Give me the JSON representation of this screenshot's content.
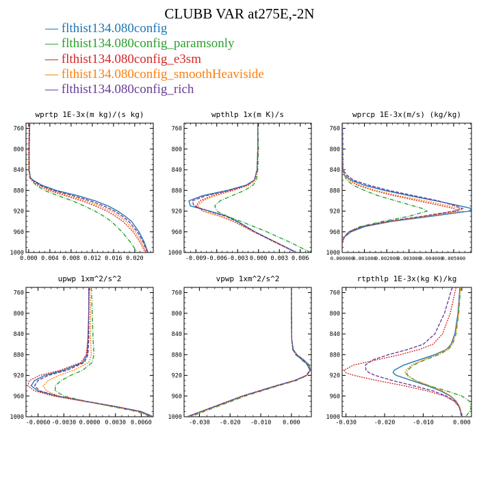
{
  "title": "CLUBB VAR at275E,-2N",
  "legend": [
    {
      "name": "flthist134.080config",
      "color": "#1f77b4",
      "dash": "solid"
    },
    {
      "name": "flthist134.080config_paramsonly",
      "color": "#2ca02c",
      "dash": "dashdot"
    },
    {
      "name": "flthist134.080config_e3sm",
      "color": "#d62728",
      "dash": "dotted"
    },
    {
      "name": "flthist134.080config_smoothHeaviside",
      "color": "#ff7f0e",
      "dash": "dotted"
    },
    {
      "name": "flthist134.080config_rich",
      "color": "#6a3d9a",
      "dash": "dashed"
    }
  ],
  "chart_data": [
    {
      "type": "line",
      "title": "wprtp  1E-3x(m kg)/(s kg)",
      "xlim": [
        -0.0005,
        0.0235
      ],
      "ylim": [
        1000,
        750
      ],
      "xticks": [
        "0.000",
        "0.004",
        "0.008",
        "0.012",
        "0.016",
        "0.020"
      ],
      "xtick_values": [
        0,
        0.004,
        0.008,
        0.012,
        0.016,
        0.02
      ],
      "yticks": [
        760,
        800,
        840,
        880,
        920,
        960,
        1000
      ],
      "y": [
        750,
        800,
        840,
        855,
        860,
        870,
        880,
        890,
        900,
        910,
        920,
        930,
        940,
        960,
        980,
        1000
      ],
      "series": [
        {
          "values": [
            0.0002,
            0.0001,
            0.0001,
            0.0003,
            0.0008,
            0.0025,
            0.0052,
            0.0092,
            0.0125,
            0.015,
            0.0168,
            0.0182,
            0.0194,
            0.0208,
            0.0218,
            0.0225
          ]
        },
        {
          "values": [
            0.0002,
            0.0001,
            0.0,
            0.0002,
            0.0005,
            0.0014,
            0.003,
            0.0055,
            0.0082,
            0.0105,
            0.0125,
            0.0142,
            0.0156,
            0.0176,
            0.0192,
            0.0205
          ]
        },
        {
          "values": [
            0.0001,
            0.0,
            0.0,
            0.0002,
            0.0006,
            0.0018,
            0.0038,
            0.0068,
            0.01,
            0.0126,
            0.0148,
            0.0164,
            0.0178,
            0.0197,
            0.021,
            0.022
          ]
        },
        {
          "values": [
            0.0002,
            0.0001,
            0.0,
            0.0002,
            0.0006,
            0.002,
            0.0042,
            0.0075,
            0.0108,
            0.0134,
            0.0156,
            0.0171,
            0.0184,
            0.0201,
            0.0213,
            0.0222
          ]
        },
        {
          "values": [
            0.0002,
            0.0001,
            0.0001,
            0.0003,
            0.0007,
            0.0022,
            0.0047,
            0.0083,
            0.0116,
            0.0142,
            0.0162,
            0.0177,
            0.0189,
            0.0205,
            0.0216,
            0.0224
          ]
        }
      ]
    },
    {
      "type": "line",
      "title": "wpthlp  1x(m K)/s",
      "xlim": [
        -0.0107,
        0.0076
      ],
      "ylim": [
        1000,
        750
      ],
      "xticks": [
        "-0.009",
        "-0.006",
        "-0.003",
        "0.000",
        "0.003",
        "0.006"
      ],
      "xtick_values": [
        -0.009,
        -0.006,
        -0.003,
        0,
        0.003,
        0.006
      ],
      "yticks": [
        760,
        800,
        840,
        880,
        920,
        960,
        1000
      ],
      "y": [
        750,
        800,
        840,
        860,
        870,
        880,
        890,
        900,
        910,
        920,
        930,
        940,
        960,
        980,
        1000
      ],
      "series": [
        {
          "values": [
            -0.0001,
            -0.0001,
            -0.0002,
            -0.0006,
            -0.0018,
            -0.0045,
            -0.008,
            -0.01,
            -0.0098,
            -0.007,
            -0.0045,
            -0.003,
            -0.0005,
            0.0025,
            0.0055
          ]
        },
        {
          "values": [
            -0.0001,
            0.0,
            -0.0001,
            -0.0003,
            -0.0008,
            -0.002,
            -0.0038,
            -0.0055,
            -0.0063,
            -0.006,
            -0.0045,
            -0.0025,
            0.0012,
            0.0045,
            0.0075
          ]
        },
        {
          "values": [
            -0.0001,
            -0.0001,
            -0.0002,
            -0.0005,
            -0.0015,
            -0.0038,
            -0.0066,
            -0.0084,
            -0.009,
            -0.008,
            -0.0055,
            -0.0036,
            -0.0007,
            0.0023,
            0.0054
          ]
        },
        {
          "values": [
            -0.0001,
            -0.0001,
            -0.0002,
            -0.0005,
            -0.0014,
            -0.0035,
            -0.0062,
            -0.008,
            -0.0088,
            -0.0079,
            -0.0054,
            -0.0035,
            -0.0006,
            0.0024,
            0.0055
          ]
        },
        {
          "values": [
            -0.0001,
            -0.0001,
            -0.0002,
            -0.0006,
            -0.0017,
            -0.0042,
            -0.0075,
            -0.0095,
            -0.0093,
            -0.0072,
            -0.0047,
            -0.0031,
            -0.0006,
            0.0024,
            0.0054
          ]
        }
      ]
    },
    {
      "type": "line",
      "title": "wprcp  1E-3x(m/s) (kg/kg)",
      "xlim": [
        0,
        0.0058
      ],
      "ylim": [
        1000,
        750
      ],
      "xticks": [
        "0.000000",
        "0.001000",
        "0.002000",
        "0.003000",
        "0.004000",
        "0.005000"
      ],
      "xtick_values": [
        0,
        0.001,
        0.002,
        0.003,
        0.004,
        0.005
      ],
      "yticks": [
        760,
        800,
        840,
        880,
        920,
        960,
        1000
      ],
      "y": [
        750,
        840,
        850,
        860,
        870,
        880,
        890,
        900,
        910,
        915,
        920,
        930,
        940,
        950,
        960,
        970,
        980,
        1000
      ],
      "series": [
        {
          "values": [
            1e-05,
            3e-05,
            0.0001,
            0.0004,
            0.001,
            0.0019,
            0.003,
            0.0042,
            0.0053,
            0.0058,
            0.0057,
            0.004,
            0.0022,
            0.001,
            0.0004,
            0.0001,
            0.0,
            0.0
          ]
        },
        {
          "values": [
            1e-05,
            2e-05,
            0.0001,
            0.0002,
            0.0005,
            0.001,
            0.0016,
            0.0024,
            0.0032,
            0.0036,
            0.0038,
            0.003,
            0.0018,
            0.0008,
            0.0003,
            0.0001,
            0.0,
            0.0
          ]
        },
        {
          "values": [
            1e-05,
            2e-05,
            0.0001,
            0.0003,
            0.0007,
            0.0014,
            0.0023,
            0.0034,
            0.0045,
            0.005,
            0.0052,
            0.0037,
            0.0021,
            0.0009,
            0.0003,
            0.0001,
            0.0,
            0.0
          ]
        },
        {
          "values": [
            1e-05,
            2e-05,
            0.0001,
            0.0003,
            0.0008,
            0.0015,
            0.0025,
            0.0037,
            0.0048,
            0.0053,
            0.0054,
            0.0038,
            0.0021,
            0.0009,
            0.0003,
            0.0001,
            0.0,
            0.0
          ]
        },
        {
          "values": [
            1e-05,
            3e-05,
            0.0002,
            0.0005,
            0.0012,
            0.0021,
            0.0032,
            0.0043,
            0.0051,
            0.0054,
            0.005,
            0.0036,
            0.002,
            0.0009,
            0.0003,
            0.0001,
            0.0,
            0.0
          ]
        }
      ]
    },
    {
      "type": "line",
      "title": "upwp  1xm^2/s^2",
      "xlim": [
        -0.0074,
        0.0074
      ],
      "ylim": [
        1000,
        750
      ],
      "xticks": [
        "-0.0060",
        "-0.0030",
        "0.0000",
        "0.0030",
        "0.0060"
      ],
      "xtick_values": [
        -0.006,
        -0.003,
        0,
        0.003,
        0.006
      ],
      "yticks": [
        760,
        800,
        840,
        880,
        920,
        960,
        1000
      ],
      "y": [
        750,
        800,
        850,
        880,
        895,
        910,
        920,
        930,
        940,
        950,
        960,
        970,
        980,
        990,
        1000
      ],
      "series": [
        {
          "values": [
            -0.0001,
            -0.0001,
            -0.0002,
            -0.0003,
            -0.0008,
            -0.003,
            -0.0052,
            -0.0064,
            -0.0068,
            -0.006,
            -0.0038,
            -0.0005,
            0.003,
            0.006,
            0.0074
          ]
        },
        {
          "values": [
            0.0002,
            0.0003,
            0.0004,
            0.0005,
            0.0003,
            -0.0008,
            -0.0022,
            -0.0033,
            -0.004,
            -0.004,
            -0.003,
            -0.0005,
            0.0025,
            0.0055,
            0.0072
          ]
        },
        {
          "values": [
            -0.0001,
            -0.0001,
            -0.0002,
            -0.0004,
            -0.001,
            -0.0034,
            -0.0058,
            -0.007,
            -0.0072,
            -0.0064,
            -0.0042,
            -0.0008,
            0.0028,
            0.0058,
            0.0073
          ]
        },
        {
          "values": [
            0.0,
            0.0001,
            0.0001,
            0.0002,
            -0.0001,
            -0.0018,
            -0.0036,
            -0.0048,
            -0.0054,
            -0.005,
            -0.0036,
            -0.0006,
            0.0027,
            0.0057,
            0.0073
          ]
        },
        {
          "values": [
            -0.0001,
            -0.0001,
            -0.0001,
            -0.0002,
            -0.0006,
            -0.0026,
            -0.0048,
            -0.006,
            -0.0064,
            -0.0058,
            -0.0037,
            -0.0005,
            0.0029,
            0.0059,
            0.0074
          ]
        }
      ]
    },
    {
      "type": "line",
      "title": "vpwp  1xm^2/s^2",
      "xlim": [
        -0.035,
        0.0065
      ],
      "ylim": [
        1000,
        750
      ],
      "xticks": [
        "-0.030",
        "-0.020",
        "-0.010",
        "0.000"
      ],
      "xtick_values": [
        -0.03,
        -0.02,
        -0.01,
        0
      ],
      "yticks": [
        760,
        800,
        840,
        880,
        920,
        960,
        1000
      ],
      "y": [
        750,
        800,
        850,
        870,
        880,
        890,
        900,
        910,
        920,
        930,
        940,
        960,
        980,
        1000
      ],
      "series": [
        {
          "values": [
            0.0,
            0.0,
            0.0001,
            0.0006,
            0.0018,
            0.004,
            0.0058,
            0.0062,
            0.005,
            0.001,
            -0.005,
            -0.016,
            -0.025,
            -0.034
          ]
        },
        {
          "values": [
            0.0,
            0.0,
            0.0001,
            0.0004,
            0.0014,
            0.0034,
            0.0052,
            0.006,
            0.0052,
            0.0016,
            -0.0042,
            -0.015,
            -0.024,
            -0.033
          ]
        },
        {
          "values": [
            0.0,
            0.0,
            0.0001,
            0.0005,
            0.0015,
            0.0036,
            0.0054,
            0.006,
            0.005,
            0.0012,
            -0.0048,
            -0.0158,
            -0.0248,
            -0.034
          ]
        },
        {
          "values": [
            0.0,
            0.0,
            0.0001,
            0.0005,
            0.0016,
            0.0037,
            0.0055,
            0.0061,
            0.0051,
            0.0013,
            -0.0046,
            -0.0155,
            -0.0245,
            -0.0335
          ]
        },
        {
          "values": [
            0.0,
            0.0,
            0.0001,
            0.0005,
            0.0015,
            0.0036,
            0.0054,
            0.006,
            0.0049,
            0.0011,
            -0.0049,
            -0.016,
            -0.025,
            -0.034
          ]
        }
      ]
    },
    {
      "type": "line",
      "title": "rtpthlp  1E-3x(kg K)/kg",
      "xlim": [
        -0.031,
        0.0025
      ],
      "ylim": [
        1000,
        750
      ],
      "xticks": [
        "-0.030",
        "-0.020",
        "-0.010",
        "0.000"
      ],
      "xtick_values": [
        -0.03,
        -0.02,
        -0.01,
        0
      ],
      "yticks": [
        760,
        800,
        840,
        880,
        920,
        960,
        1000
      ],
      "y": [
        750,
        800,
        840,
        860,
        870,
        880,
        890,
        900,
        910,
        915,
        920,
        930,
        940,
        950,
        960,
        970,
        980,
        990,
        1000
      ],
      "series": [
        {
          "values": [
            -0.0005,
            -0.001,
            -0.0018,
            -0.0028,
            -0.004,
            -0.007,
            -0.011,
            -0.015,
            -0.0175,
            -0.0178,
            -0.017,
            -0.013,
            -0.009,
            -0.0055,
            -0.003,
            -0.0015,
            -0.0007,
            -0.0003,
            -0.0001
          ]
        },
        {
          "values": [
            -0.0003,
            -0.0008,
            -0.0015,
            -0.0024,
            -0.0035,
            -0.006,
            -0.0095,
            -0.0125,
            -0.014,
            -0.0143,
            -0.014,
            -0.012,
            -0.0085,
            -0.004,
            0.0,
            0.002,
            0.0025,
            0.002,
            0.001
          ]
        },
        {
          "values": [
            -0.0015,
            -0.003,
            -0.005,
            -0.0075,
            -0.011,
            -0.016,
            -0.022,
            -0.028,
            -0.0305,
            -0.03,
            -0.028,
            -0.022,
            -0.015,
            -0.009,
            -0.0045,
            -0.002,
            -0.0008,
            -0.0003,
            -0.0001
          ]
        },
        {
          "values": [
            -0.0004,
            -0.0009,
            -0.0016,
            -0.0026,
            -0.0038,
            -0.0065,
            -0.01,
            -0.013,
            -0.0145,
            -0.0147,
            -0.0143,
            -0.012,
            -0.0085,
            -0.005,
            -0.0028,
            -0.0014,
            -0.0006,
            -0.0002,
            -0.0001
          ]
        },
        {
          "values": [
            -0.0025,
            -0.0045,
            -0.007,
            -0.01,
            -0.014,
            -0.019,
            -0.023,
            -0.025,
            -0.0248,
            -0.024,
            -0.0225,
            -0.018,
            -0.0125,
            -0.0075,
            -0.004,
            -0.0018,
            -0.0007,
            -0.0003,
            -0.0001
          ]
        }
      ]
    }
  ]
}
